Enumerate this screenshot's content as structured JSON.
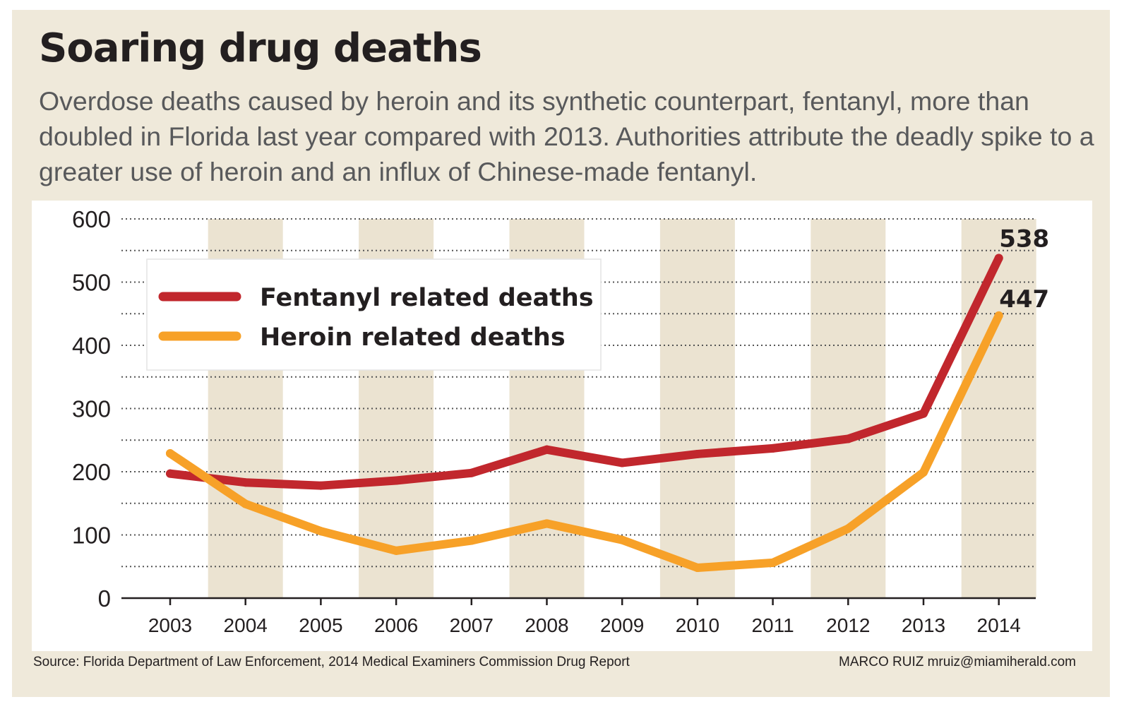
{
  "header": {
    "title": "Soaring drug deaths",
    "subtitle": "Overdose deaths caused by heroin and its synthetic counterpart, fentanyl, more than doubled in Florida last year compared with 2013. Authorities attribute the deadly spike to a greater use of heroin and an influx of Chinese-made fentanyl."
  },
  "footer": {
    "source": "Source: Florida Department of Law Enforcement, 2014 Medical Examiners Commission Drug Report",
    "credit": "MARCO RUIZ mruiz@miamiherald.com"
  },
  "colors": {
    "background": "#efe9da",
    "band": "#ebe3d1",
    "fentanyl": "#c1272d",
    "heroin": "#f7a128",
    "text": "#231f20"
  },
  "chart_data": {
    "type": "line",
    "title": "Soaring drug deaths",
    "x": [
      "2003",
      "2004",
      "2005",
      "2006",
      "2007",
      "2008",
      "2009",
      "2010",
      "2011",
      "2012",
      "2013",
      "2014"
    ],
    "series": [
      {
        "name": "Fentanyl related deaths",
        "color": "#c1272d",
        "values": [
          197,
          183,
          178,
          186,
          198,
          235,
          214,
          228,
          237,
          252,
          292,
          538
        ]
      },
      {
        "name": "Heroin related deaths",
        "color": "#f7a128",
        "values": [
          229,
          149,
          106,
          75,
          91,
          118,
          92,
          48,
          56,
          110,
          199,
          447
        ]
      }
    ],
    "end_labels": [
      "538",
      "447"
    ],
    "yticks": [
      0,
      100,
      200,
      300,
      400,
      500,
      600
    ],
    "ylim": [
      0,
      600
    ],
    "xlabel": "",
    "ylabel": "",
    "grid": "dotted horizontal",
    "legend_position": "top-left"
  }
}
